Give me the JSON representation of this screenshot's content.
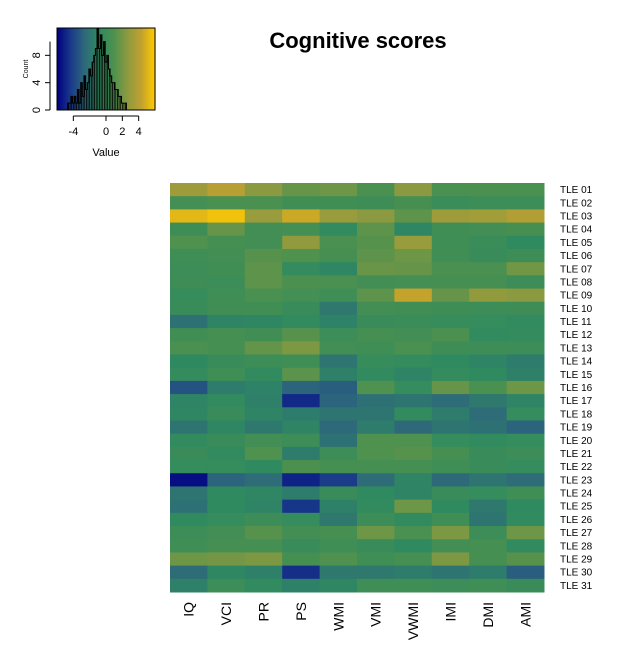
{
  "chart_data": [
    {
      "type": "heatmap",
      "title": "Cognitive scores",
      "columns": [
        "IQ",
        "VCI",
        "PR",
        "PS",
        "WMI",
        "VMI",
        "VWMI",
        "IMI",
        "DMI",
        "AMI"
      ],
      "rows": [
        "TLE 01",
        "TLE 02",
        "TLE 03",
        "TLE 04",
        "TLE 05",
        "TLE 06",
        "TLE 07",
        "TLE 08",
        "TLE 09",
        "TLE 10",
        "TLE 11",
        "TLE 12",
        "TLE 13",
        "TLE 14",
        "TLE 15",
        "TLE 16",
        "TLE 17",
        "TLE 18",
        "TLE 19",
        "TLE 20",
        "TLE 21",
        "TLE 22",
        "TLE 23",
        "TLE 24",
        "TLE 25",
        "TLE 26",
        "TLE 27",
        "TLE 28",
        "TLE 29",
        "TLE 30",
        "TLE 31"
      ],
      "value_range": [
        -6,
        6
      ],
      "values": [
        [
          3.2,
          4.0,
          2.6,
          1.6,
          1.8,
          0.8,
          2.6,
          0.8,
          0.9,
          0.8
        ],
        [
          0.5,
          0.8,
          0.8,
          0.3,
          0.3,
          0.1,
          0.7,
          -0.1,
          0.0,
          0.0
        ],
        [
          5.2,
          5.6,
          3.0,
          4.6,
          3.0,
          2.6,
          1.4,
          3.2,
          3.3,
          3.8
        ],
        [
          0.1,
          1.6,
          0.4,
          0.5,
          -0.7,
          1.4,
          -1.0,
          0.3,
          0.4,
          0.7
        ],
        [
          1.0,
          0.6,
          0.4,
          2.8,
          0.8,
          1.2,
          3.0,
          0.2,
          -0.1,
          -0.8
        ],
        [
          0.2,
          0.4,
          1.2,
          1.0,
          0.6,
          1.4,
          1.8,
          0.3,
          -0.2,
          0.1
        ],
        [
          0.0,
          0.3,
          1.4,
          -0.5,
          -1.0,
          1.7,
          1.6,
          0.8,
          0.8,
          1.9
        ],
        [
          0.1,
          0.0,
          1.4,
          0.9,
          0.8,
          0.4,
          0.5,
          0.6,
          0.6,
          0.0
        ],
        [
          -0.3,
          0.2,
          0.8,
          0.5,
          0.2,
          1.4,
          4.4,
          1.6,
          2.8,
          2.6
        ],
        [
          -0.2,
          0.3,
          0.3,
          -0.2,
          -1.8,
          0.4,
          0.3,
          0.1,
          0.0,
          0.1
        ],
        [
          -2.2,
          -1.2,
          -1.0,
          -0.6,
          -1.3,
          -0.2,
          -0.1,
          -0.3,
          -0.4,
          -0.6
        ],
        [
          0.3,
          0.6,
          0.3,
          1.2,
          0.0,
          0.6,
          0.4,
          0.9,
          -0.7,
          -0.5
        ],
        [
          0.8,
          0.6,
          1.5,
          2.2,
          0.4,
          0.2,
          0.8,
          0.1,
          0.1,
          0.0
        ],
        [
          -0.9,
          -0.2,
          0.0,
          0.2,
          -2.0,
          -0.3,
          -0.5,
          -0.8,
          -1.2,
          -1.6
        ],
        [
          -0.5,
          0.2,
          -0.6,
          1.3,
          -1.4,
          -0.7,
          -1.2,
          -0.5,
          -0.8,
          -1.4
        ],
        [
          -3.4,
          -1.6,
          -1.3,
          -2.8,
          -3.0,
          1.0,
          -0.4,
          1.6,
          0.8,
          1.8
        ],
        [
          -1.2,
          -0.6,
          -1.4,
          -4.8,
          -2.8,
          -2.2,
          -2.0,
          -2.4,
          -1.8,
          -1.2
        ],
        [
          -1.0,
          -0.2,
          -1.2,
          -1.6,
          -2.0,
          -2.0,
          -0.6,
          -1.6,
          -2.4,
          -0.4
        ],
        [
          -2.0,
          -1.0,
          -1.8,
          -1.2,
          -2.6,
          -1.6,
          -2.6,
          -2.0,
          -2.2,
          -2.8
        ],
        [
          -0.6,
          -0.2,
          0.4,
          0.0,
          -2.2,
          1.0,
          1.0,
          -0.4,
          -0.6,
          -0.4
        ],
        [
          -0.2,
          -0.6,
          1.0,
          -1.6,
          0.0,
          1.0,
          1.2,
          0.6,
          -0.2,
          0.0
        ],
        [
          -0.4,
          -0.4,
          -0.8,
          0.9,
          0.6,
          0.6,
          0.6,
          0.2,
          -0.2,
          -0.4
        ],
        [
          -5.6,
          -2.8,
          -2.4,
          -5.0,
          -4.2,
          -2.4,
          -1.2,
          -2.6,
          -2.0,
          -2.4
        ],
        [
          -2.0,
          -0.8,
          -1.0,
          -1.6,
          -0.2,
          -0.8,
          -1.2,
          -0.2,
          -0.4,
          0.2
        ],
        [
          -2.2,
          -0.8,
          -1.2,
          -4.4,
          -1.4,
          -0.6,
          1.8,
          -0.8,
          -1.8,
          -0.8
        ],
        [
          -0.8,
          -0.4,
          0.0,
          -0.4,
          -1.8,
          0.0,
          -0.6,
          0.2,
          -2.0,
          -0.6
        ],
        [
          0.0,
          0.4,
          1.2,
          0.4,
          0.6,
          1.8,
          0.8,
          2.2,
          0.0,
          1.8
        ],
        [
          0.2,
          0.6,
          0.6,
          -0.2,
          0.2,
          -0.2,
          -0.8,
          0.4,
          0.6,
          -0.6
        ],
        [
          1.8,
          2.0,
          2.2,
          0.6,
          1.0,
          0.2,
          0.6,
          2.2,
          0.6,
          1.2
        ],
        [
          -2.4,
          -1.0,
          -1.4,
          -4.6,
          -1.8,
          -1.8,
          -1.6,
          -2.0,
          -1.6,
          -3.0
        ],
        [
          -1.4,
          0.0,
          -0.6,
          -1.4,
          -1.0,
          0.2,
          0.2,
          0.0,
          0.2,
          -0.2
        ]
      ],
      "colorscale": [
        "#000080",
        "#1A3A8A",
        "#2E6A7A",
        "#2E8A60",
        "#4A9050",
        "#8A9A40",
        "#C0A030",
        "#FFCC00"
      ]
    },
    {
      "type": "histogram",
      "xlabel": "Value",
      "ylabel": "Count",
      "x_ticks": [
        -4,
        0,
        2,
        4
      ],
      "y_ticks": [
        0,
        4,
        8
      ],
      "xlim": [
        -6,
        6
      ],
      "ylim": [
        0,
        12
      ],
      "bin_centers": [
        -4.6,
        -4.4,
        -4.2,
        -4.0,
        -3.8,
        -3.6,
        -3.4,
        -3.2,
        -3.0,
        -2.8,
        -2.6,
        -2.4,
        -2.2,
        -2.0,
        -1.8,
        -1.6,
        -1.4,
        -1.2,
        -1.0,
        -0.8,
        -0.6,
        -0.4,
        -0.2,
        0.0,
        0.2,
        0.4,
        0.6,
        0.8,
        1.0,
        1.2,
        1.4,
        1.6,
        1.8,
        2.0,
        2.2,
        2.4
      ],
      "counts": [
        1,
        1,
        2,
        1,
        2,
        1,
        3,
        1,
        4,
        2,
        5,
        3,
        4,
        6,
        5,
        7,
        8,
        9,
        12,
        9,
        11,
        8,
        10,
        7,
        8,
        6,
        5,
        4,
        4,
        3,
        3,
        2,
        2,
        1,
        1,
        1
      ]
    }
  ]
}
